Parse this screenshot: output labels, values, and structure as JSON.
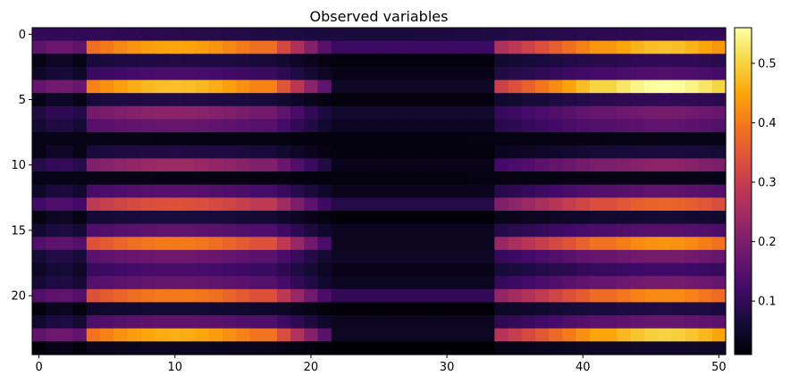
{
  "chart_data": {
    "type": "heatmap",
    "title": "Observed variables",
    "xlabel": "",
    "ylabel": "",
    "colormap": "inferno",
    "x_ticks": [
      0,
      10,
      20,
      30,
      40,
      50
    ],
    "y_ticks": [
      0,
      5,
      10,
      15,
      20
    ],
    "x_range": [
      0,
      50
    ],
    "y_range": [
      0,
      23
    ],
    "colorbar": {
      "min": 0.01,
      "max": 0.56,
      "ticks": [
        0.1,
        0.2,
        0.3,
        0.4,
        0.5
      ]
    },
    "rows": [
      {
        "index": 0,
        "value": 0.1,
        "pattern": "flat"
      },
      {
        "index": 1,
        "value": 0.45,
        "pattern": "wave",
        "peak_b": 0.48
      },
      {
        "index": 2,
        "value": 0.08,
        "pattern": "wave",
        "peak_b": 0.1
      },
      {
        "index": 3,
        "value": 0.13,
        "pattern": "wave",
        "peak_b": 0.14
      },
      {
        "index": 4,
        "value": 0.48,
        "pattern": "wave_low",
        "peak_b": 0.56
      },
      {
        "index": 5,
        "value": 0.08,
        "pattern": "wave",
        "peak_b": 0.1
      },
      {
        "index": 6,
        "value": 0.22,
        "pattern": "wave",
        "peak_b": 0.19
      },
      {
        "index": 7,
        "value": 0.17,
        "pattern": "wave",
        "peak_b": 0.16
      },
      {
        "index": 8,
        "value": 0.03,
        "pattern": "flat"
      },
      {
        "index": 9,
        "value": 0.08,
        "pattern": "wave",
        "peak_b": 0.07
      },
      {
        "index": 10,
        "value": 0.24,
        "pattern": "wave_low",
        "peak_b": 0.22
      },
      {
        "index": 11,
        "value": 0.03,
        "pattern": "flat"
      },
      {
        "index": 12,
        "value": 0.15,
        "pattern": "wave",
        "peak_b": 0.16
      },
      {
        "index": 13,
        "value": 0.34,
        "pattern": "wave",
        "peak_b": 0.37
      },
      {
        "index": 14,
        "value": 0.07,
        "pattern": "wave",
        "peak_b": 0.06
      },
      {
        "index": 15,
        "value": 0.16,
        "pattern": "wave",
        "peak_b": 0.15
      },
      {
        "index": 16,
        "value": 0.4,
        "pattern": "wave_low",
        "peak_b": 0.43
      },
      {
        "index": 17,
        "value": 0.18,
        "pattern": "wave",
        "peak_b": 0.19
      },
      {
        "index": 18,
        "value": 0.13,
        "pattern": "wave",
        "peak_b": 0.12
      },
      {
        "index": 19,
        "value": 0.17,
        "pattern": "wave",
        "peak_b": 0.19
      },
      {
        "index": 20,
        "value": 0.4,
        "pattern": "wave",
        "peak_b": 0.42
      },
      {
        "index": 21,
        "value": 0.06,
        "pattern": "wave",
        "peak_b": 0.08
      },
      {
        "index": 22,
        "value": 0.16,
        "pattern": "wave",
        "peak_b": 0.17
      },
      {
        "index": 23,
        "value": 0.46,
        "pattern": "wave_low",
        "peak_b": 0.5
      },
      {
        "index": 24,
        "value": 0.04,
        "pattern": "wave",
        "peak_b": 0.05
      }
    ]
  }
}
